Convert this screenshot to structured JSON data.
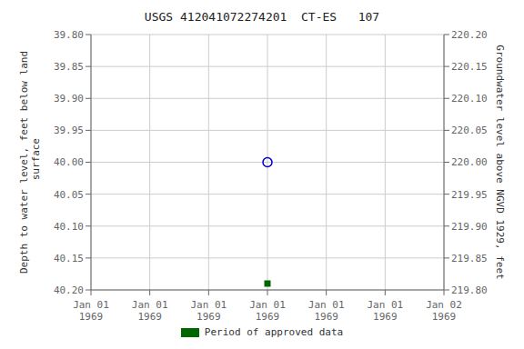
{
  "chart_data": {
    "type": "scatter",
    "title": "USGS 412041072274201  CT-ES   107",
    "categories": [
      "Jan 01\n1969",
      "Jan 01\n1969",
      "Jan 01\n1969",
      "Jan 01\n1969",
      "Jan 01\n1969",
      "Jan 01\n1969",
      "Jan 02\n1969"
    ],
    "ylabel": "Depth to water level, feet below land\n surface",
    "y2label": "Groundwater level above NGVD 1929, feet",
    "ylim": [
      40.2,
      39.8
    ],
    "yticks": [
      {
        "value": 39.8,
        "label": "39.80"
      },
      {
        "value": 39.85,
        "label": "39.85"
      },
      {
        "value": 39.9,
        "label": "39.90"
      },
      {
        "value": 39.95,
        "label": "39.95"
      },
      {
        "value": 40.0,
        "label": "40.00"
      },
      {
        "value": 40.05,
        "label": "40.05"
      },
      {
        "value": 40.1,
        "label": "40.10"
      },
      {
        "value": 40.15,
        "label": "40.15"
      },
      {
        "value": 40.2,
        "label": "40.20"
      }
    ],
    "y2lim": [
      219.8,
      220.2
    ],
    "y2ticks": [
      {
        "value": 219.8,
        "label": "219.80"
      },
      {
        "value": 219.85,
        "label": "219.85"
      },
      {
        "value": 219.9,
        "label": "219.90"
      },
      {
        "value": 219.95,
        "label": "219.95"
      },
      {
        "value": 220.0,
        "label": "220.00"
      },
      {
        "value": 220.05,
        "label": "220.05"
      },
      {
        "value": 220.1,
        "label": "220.10"
      },
      {
        "value": 220.15,
        "label": "220.15"
      },
      {
        "value": 220.2,
        "label": "220.20"
      }
    ],
    "grid": true,
    "legend": "bottom",
    "series": [
      {
        "color": "#0000cc",
        "marker": "open_circle",
        "values": [
          null,
          null,
          null,
          40.0,
          null,
          null,
          null
        ]
      },
      {
        "name": "Period of approved data",
        "color": "#006600",
        "marker": "square",
        "values": [
          null,
          null,
          null,
          40.19,
          null,
          null,
          null
        ]
      }
    ]
  }
}
